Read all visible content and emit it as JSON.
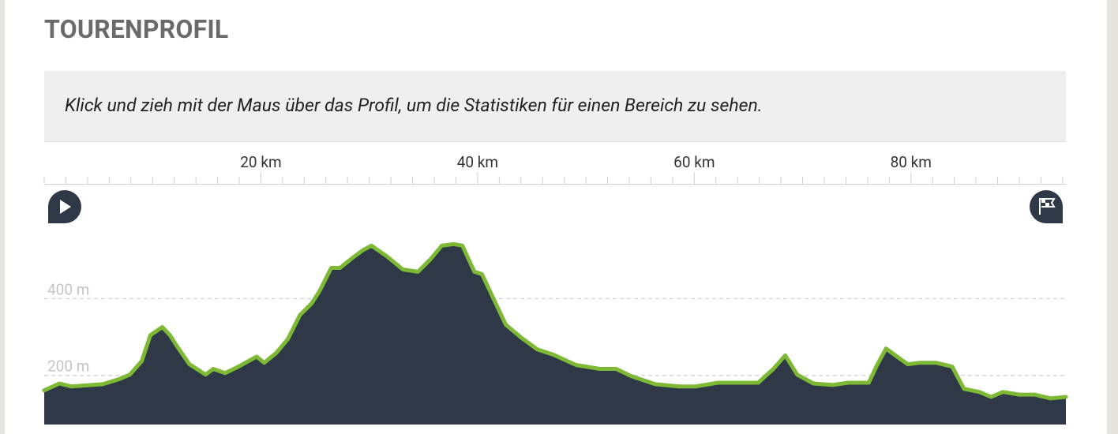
{
  "chart_data": {
    "type": "area",
    "title": "TOURENPROFIL",
    "subtitle": "Klick und zieh mit der Maus über das Profil, um die Statistiken für einen Bereich zu sehen.",
    "x": [
      0,
      1.4,
      2.5,
      5.4,
      6.9,
      7.9,
      9.0,
      9.8,
      10.9,
      11.6,
      12.3,
      13.4,
      14.9,
      15.6,
      16.7,
      17.8,
      19.6,
      20.3,
      21.4,
      22.5,
      23.6,
      24.7,
      25.4,
      26.5,
      27.3,
      28.4,
      29.4,
      30.2,
      31.6,
      33.1,
      34.5,
      35.6,
      36.7,
      37.8,
      38.6,
      39.7,
      40.4,
      41.5,
      42.6,
      44.0,
      45.5,
      47.0,
      49.1,
      51.3,
      52.8,
      54.2,
      56.4,
      58.6,
      60.1,
      62.2,
      64.4,
      65.9,
      67.3,
      68.4,
      69.5,
      71.0,
      72.8,
      74.2,
      76.1,
      76.8,
      77.7,
      79.0,
      79.7,
      80.8,
      82.3,
      83.8,
      84.9,
      86.3,
      87.4,
      88.5,
      90.0,
      91.4,
      92.9,
      94.3
    ],
    "values": [
      161,
      179,
      171,
      177,
      190,
      202,
      237,
      305,
      326,
      305,
      274,
      229,
      202,
      217,
      206,
      221,
      249,
      233,
      258,
      295,
      357,
      388,
      419,
      480,
      480,
      505,
      526,
      538,
      511,
      476,
      470,
      501,
      538,
      542,
      538,
      470,
      464,
      398,
      332,
      299,
      268,
      254,
      227,
      217,
      217,
      198,
      177,
      171,
      171,
      181,
      181,
      181,
      217,
      252,
      202,
      179,
      175,
      181,
      181,
      223,
      270,
      243,
      229,
      233,
      233,
      223,
      165,
      157,
      144,
      157,
      150,
      150,
      140,
      144
    ],
    "color": "#7db935",
    "fill": "#2e3846",
    "xlim": [
      0,
      94.3
    ],
    "ylim": [
      72,
      697
    ],
    "xticks": [
      {
        "value": 20,
        "label": "20 km"
      },
      {
        "value": 40,
        "label": "40 km"
      },
      {
        "value": 60,
        "label": "60 km"
      },
      {
        "value": 80,
        "label": "80 km"
      }
    ],
    "xminorticks": [
      0,
      2,
      4,
      6,
      8,
      10,
      12,
      14,
      16,
      18,
      22,
      24,
      26,
      28,
      30,
      32,
      34,
      36,
      38,
      42,
      44,
      46,
      48,
      50,
      52,
      54,
      56,
      58,
      62,
      64,
      66,
      68,
      70,
      72,
      74,
      76,
      78,
      82,
      84,
      86,
      88,
      90,
      92,
      94
    ],
    "yticks": [
      {
        "value": 200,
        "label": "200 m"
      },
      {
        "value": 400,
        "label": "400 m"
      }
    ],
    "grid": true
  }
}
